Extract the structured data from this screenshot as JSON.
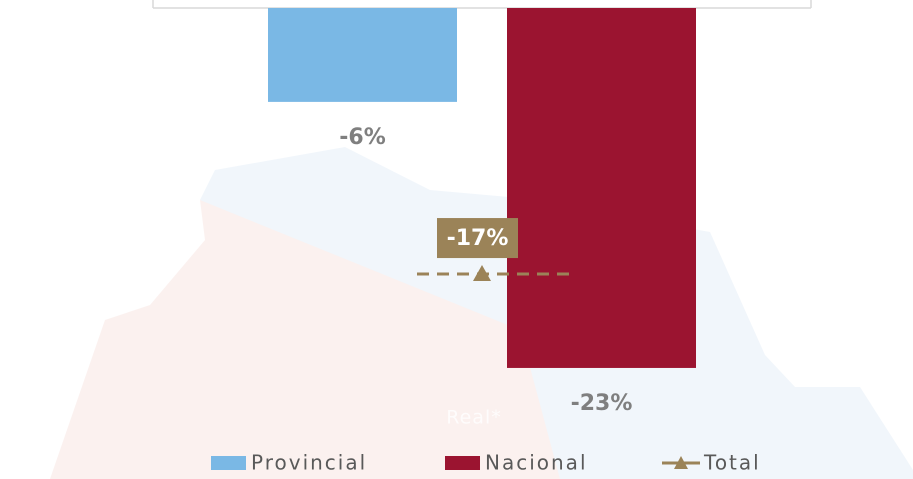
{
  "chart_data": {
    "type": "bar",
    "categories": [
      "Real*"
    ],
    "ylim": [
      -30,
      0
    ],
    "series": [
      {
        "name": "Provincial",
        "type": "bar",
        "color": "#7ab8e5",
        "values": [
          -6
        ],
        "value_labels": [
          "-6%"
        ]
      },
      {
        "name": "Nacional",
        "type": "bar",
        "color": "#9b1430",
        "values": [
          -23
        ],
        "value_labels": [
          "-23%"
        ]
      },
      {
        "name": "Total",
        "type": "line",
        "color": "#9b8358",
        "values": [
          -17
        ],
        "value_labels": [
          "-17%"
        ]
      }
    ],
    "legend": "bottom"
  }
}
